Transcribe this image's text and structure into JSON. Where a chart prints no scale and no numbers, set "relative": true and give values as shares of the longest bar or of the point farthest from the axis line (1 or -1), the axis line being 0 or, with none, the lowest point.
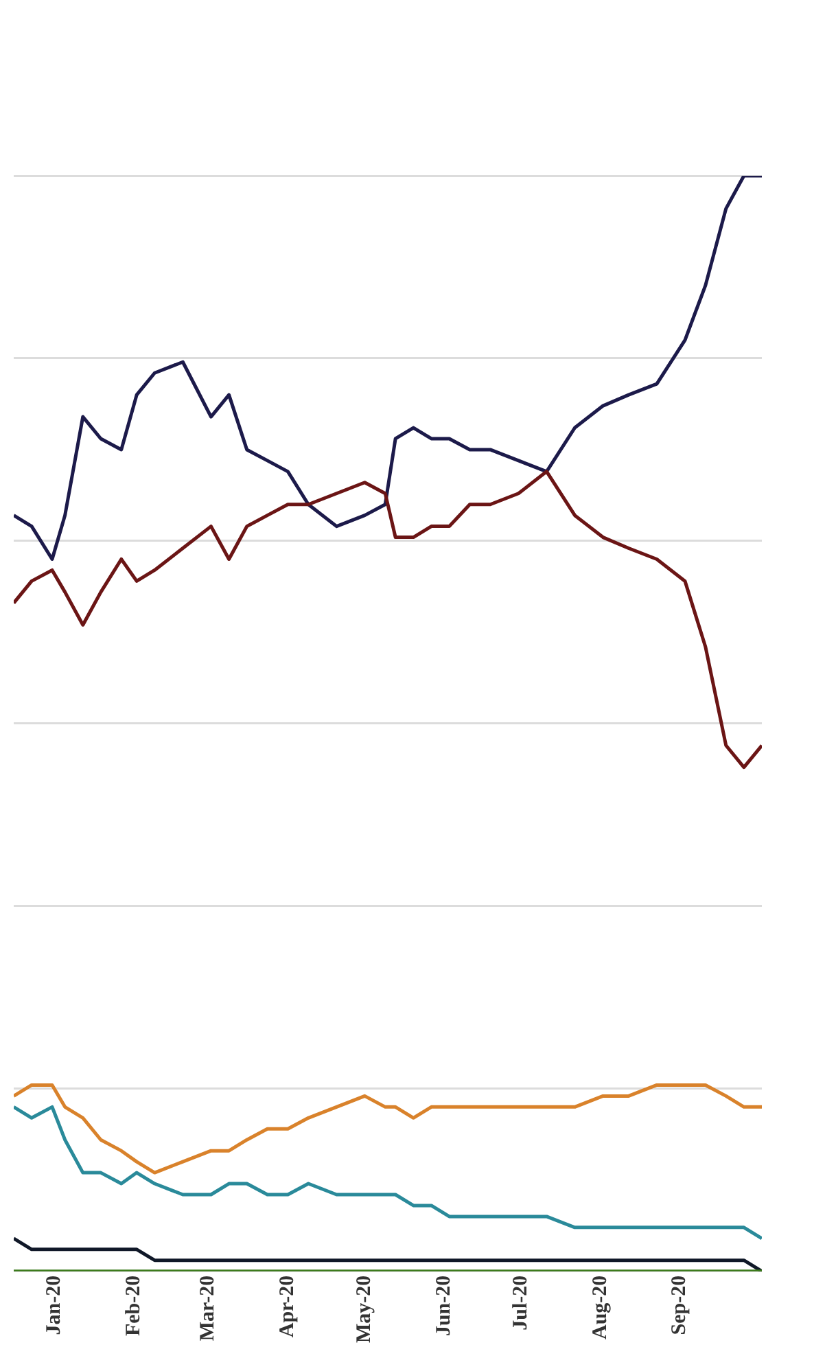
{
  "chart_data": {
    "type": "line",
    "relative": true,
    "grid": "y",
    "legend": false,
    "marker": "none",
    "line_style": "solid",
    "x": [
      "2019-12-16",
      "2019-12-23",
      "2019-12-31",
      "2020-01-05",
      "2020-01-12",
      "2020-01-19",
      "2020-01-27",
      "2020-02-02",
      "2020-02-09",
      "2020-02-20",
      "2020-03-02",
      "2020-03-09",
      "2020-03-16",
      "2020-03-24",
      "2020-04-01",
      "2020-04-09",
      "2020-04-20",
      "2020-05-01",
      "2020-05-09",
      "2020-05-13",
      "2020-05-20",
      "2020-05-27",
      "2020-06-03",
      "2020-06-11",
      "2020-06-19",
      "2020-06-30",
      "2020-07-11",
      "2020-07-22",
      "2020-08-02",
      "2020-08-12",
      "2020-08-23",
      "2020-09-03",
      "2020-09-11",
      "2020-09-19",
      "2020-09-26",
      "2020-10-03"
    ],
    "xlim": [
      "2019-12-16",
      "2020-10-03"
    ],
    "xticks": [
      {
        "value": "2020-01-01",
        "label": "Jan-20"
      },
      {
        "value": "2020-02-01",
        "label": "Feb-20"
      },
      {
        "value": "2020-03-01",
        "label": "Mar-20"
      },
      {
        "value": "2020-04-01",
        "label": "Apr-20"
      },
      {
        "value": "2020-05-01",
        "label": "May-20"
      },
      {
        "value": "2020-06-01",
        "label": "Jun-20"
      },
      {
        "value": "2020-07-01",
        "label": "Jul-20"
      },
      {
        "value": "2020-08-01",
        "label": "Aug-20"
      },
      {
        "value": "2020-09-01",
        "label": "Sep-20"
      }
    ],
    "series": [
      {
        "color": "#3a7a1a",
        "values": [
          0,
          0,
          0,
          0,
          0,
          0,
          0,
          0,
          0,
          0,
          0,
          0,
          0,
          0,
          0,
          0,
          0,
          0,
          0,
          0,
          0,
          0,
          0,
          0,
          0,
          0,
          0,
          0,
          0,
          0,
          0,
          0,
          0,
          0,
          0,
          0
        ]
      },
      {
        "color": "#101828",
        "values": [
          0.03,
          0.02,
          0.02,
          0.02,
          0.02,
          0.02,
          0.02,
          0.02,
          0.01,
          0.01,
          0.01,
          0.01,
          0.01,
          0.01,
          0.01,
          0.01,
          0.01,
          0.01,
          0.01,
          0.01,
          0.01,
          0.01,
          0.01,
          0.01,
          0.01,
          0.01,
          0.01,
          0.01,
          0.01,
          0.01,
          0.01,
          0.01,
          0.01,
          0.01,
          0.01,
          0
        ]
      },
      {
        "color": "#2a8a9a",
        "values": [
          0.15,
          0.14,
          0.15,
          0.12,
          0.09,
          0.09,
          0.08,
          0.09,
          0.08,
          0.07,
          0.07,
          0.08,
          0.08,
          0.07,
          0.07,
          0.08,
          0.07,
          0.07,
          0.07,
          0.07,
          0.06,
          0.06,
          0.05,
          0.05,
          0.05,
          0.05,
          0.05,
          0.04,
          0.04,
          0.04,
          0.04,
          0.04,
          0.04,
          0.04,
          0.04,
          0.03
        ]
      },
      {
        "color": "#d9822b",
        "values": [
          0.16,
          0.17,
          0.17,
          0.15,
          0.14,
          0.12,
          0.11,
          0.1,
          0.09,
          0.1,
          0.11,
          0.11,
          0.12,
          0.13,
          0.13,
          0.14,
          0.15,
          0.16,
          0.15,
          0.15,
          0.14,
          0.15,
          0.15,
          0.15,
          0.15,
          0.15,
          0.15,
          0.15,
          0.16,
          0.16,
          0.17,
          0.17,
          0.17,
          0.16,
          0.15,
          0.15
        ]
      },
      {
        "color": "#6b1515",
        "values": [
          0.61,
          0.63,
          0.64,
          0.62,
          0.59,
          0.62,
          0.65,
          0.63,
          0.64,
          0.66,
          0.68,
          0.65,
          0.68,
          0.69,
          0.7,
          0.7,
          0.71,
          0.72,
          0.71,
          0.67,
          0.67,
          0.68,
          0.68,
          0.7,
          0.7,
          0.71,
          0.73,
          0.69,
          0.67,
          0.66,
          0.65,
          0.63,
          0.57,
          0.48,
          0.46,
          0.48
        ]
      },
      {
        "color": "#1c1a4a",
        "values": [
          0.69,
          0.68,
          0.65,
          0.69,
          0.78,
          0.76,
          0.75,
          0.8,
          0.82,
          0.83,
          0.78,
          0.8,
          0.75,
          0.74,
          0.73,
          0.7,
          0.68,
          0.69,
          0.7,
          0.76,
          0.77,
          0.76,
          0.76,
          0.75,
          0.75,
          0.74,
          0.73,
          0.77,
          0.79,
          0.8,
          0.81,
          0.85,
          0.9,
          0.97,
          1,
          1
        ]
      }
    ]
  }
}
